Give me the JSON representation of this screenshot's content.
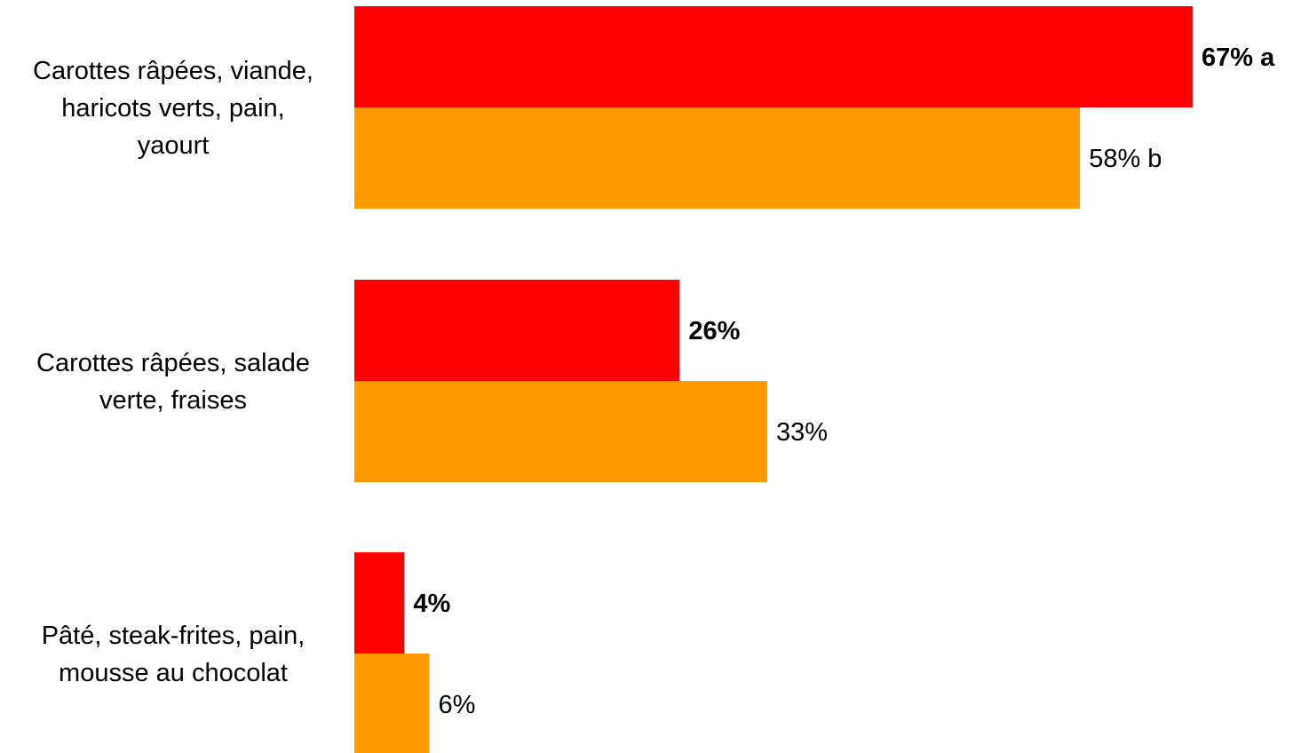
{
  "chart_data": {
    "type": "bar",
    "orientation": "horizontal",
    "categories": [
      [
        "Carottes râpées, viande,",
        "haricots verts, pain,",
        "yaourt"
      ],
      [
        "Carottes râpées, salade",
        "verte, fraises"
      ],
      [
        "Pâté, steak-frites, pain,",
        "mousse au chocolat"
      ]
    ],
    "series": [
      {
        "color": "#ff0000",
        "values": [
          67,
          26,
          4
        ],
        "labels": [
          "67% a",
          "26%",
          "4%"
        ],
        "bold": true
      },
      {
        "color": "#ff9900",
        "values": [
          58,
          33,
          6
        ],
        "labels": [
          "58% b",
          "33%",
          "6%"
        ],
        "bold": false
      }
    ],
    "xlim": [
      0,
      67
    ],
    "grid": false,
    "legend": "none"
  }
}
